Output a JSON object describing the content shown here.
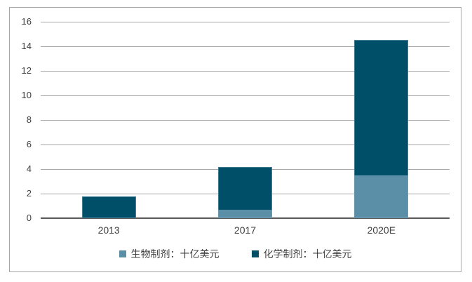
{
  "colors": {
    "background": "#ffffff",
    "frame_border": "#a6a6a6",
    "gridline": "#a6a6a6",
    "axis_line": "#595959",
    "text": "#404040",
    "series_bio": "#5b8fa8",
    "series_chem": "#004f68"
  },
  "chart_data": {
    "type": "bar",
    "stacked": true,
    "title": "",
    "xlabel": "",
    "ylabel": "",
    "categories": [
      "2013",
      "2017",
      "2020E"
    ],
    "series": [
      {
        "name": "生物制剂：十亿美元",
        "color": "#5b8fa8",
        "values": [
          0,
          0.7,
          3.5
        ]
      },
      {
        "name": "化学制剂：十亿美元",
        "color": "#004f68",
        "values": [
          1.8,
          3.5,
          11.0
        ]
      }
    ],
    "totals": [
      1.8,
      4.2,
      14.5
    ],
    "ylim": [
      0,
      16
    ],
    "ytick_step": 2,
    "yticks": [
      16,
      14,
      12,
      10,
      8,
      6,
      4,
      2,
      0
    ],
    "grid": "horizontal",
    "legend_position": "bottom"
  }
}
